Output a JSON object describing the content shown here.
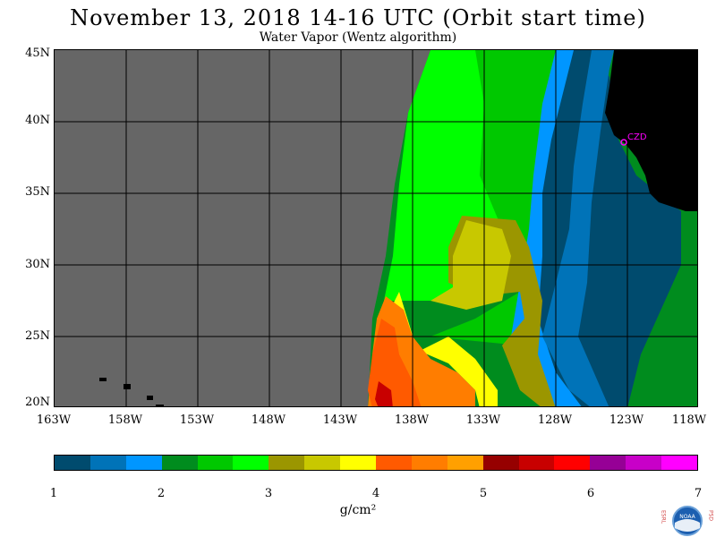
{
  "title": "November 13, 2018  14-16 UTC  (Orbit start time)",
  "subtitle": "Water Vapor (Wentz algorithm)",
  "map": {
    "lat_labels": [
      "45N",
      "40N",
      "35N",
      "30N",
      "25N",
      "20N"
    ],
    "lon_labels": [
      "163W",
      "158W",
      "153W",
      "148W",
      "143W",
      "138W",
      "133W",
      "128W",
      "123W",
      "118W"
    ],
    "station_label": "CZD",
    "colors": {
      "no_data": "#666666",
      "land": "#000000",
      "station": "#ff00ff",
      "grid": "#000000"
    }
  },
  "colorbar": {
    "tick_labels": [
      "1",
      "2",
      "3",
      "4",
      "5",
      "6",
      "7"
    ],
    "units": "g/cm²",
    "colors": [
      "#004b6e",
      "#0073b8",
      "#0096ff",
      "#008c1e",
      "#00c800",
      "#00ff00",
      "#9b9600",
      "#c8c800",
      "#ffff00",
      "#ff5a00",
      "#ff7d00",
      "#ffa000",
      "#960000",
      "#c80000",
      "#ff0000",
      "#960096",
      "#c800c8",
      "#ff00ff"
    ]
  },
  "logo": {
    "left_letters": "ESRL",
    "right_letters": "PSD",
    "center_text": "NOAA"
  }
}
